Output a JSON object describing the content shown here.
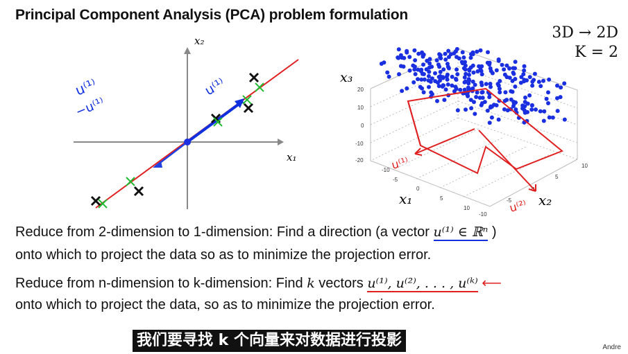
{
  "slide": {
    "title": "Principal Component Analysis (PCA) problem formulation",
    "corner": {
      "line1": "3D → 2D",
      "line2": "K = 2"
    }
  },
  "plot2d": {
    "x_label": "x₁",
    "y_label": "x₂",
    "ann_u1": "u⁽¹⁾",
    "ann_u1_left": "u⁽¹⁾",
    "ann_neg_u1": "−u⁽¹⁾"
  },
  "plot3d": {
    "z_label": "x₃",
    "x_label": "x₁",
    "y_label": "x₂",
    "z_ticks": [
      "20",
      "10",
      "0",
      "-10",
      "-20"
    ],
    "x_ticks": [
      "-10",
      "-5",
      "0",
      "5",
      "10"
    ],
    "y_ticks": [
      "-10",
      "-5",
      "0",
      "5",
      "10"
    ],
    "ann_u1": "u⁽¹⁾",
    "ann_u2": "u⁽²⁾"
  },
  "text": {
    "line1_prefix": "Reduce from 2-dimension to 1-dimension: Find a direction (a vector",
    "line1_math": "u⁽¹⁾ ∈ ℝⁿ",
    "line1_suffix": ")",
    "line2": "onto which to project the data so as to minimize the projection error.",
    "line3_prefix": "Reduce from n-dimension to k-dimension: Find",
    "line3_k": "k",
    "line3_mid": "vectors",
    "line3_math": "u⁽¹⁾, u⁽²⁾, . . . , u⁽ᵏ⁾",
    "line4": "onto which to project the data, so as to minimize the projection error."
  },
  "subtitle": "我们要寻找 k 个向量来对数据进行投影",
  "watermark": "Andre",
  "colors": {
    "pen_red": "#e02020",
    "pen_blue": "#1030e0",
    "pen_green": "#22bb33",
    "dot_blue": "#1a2fe0"
  }
}
